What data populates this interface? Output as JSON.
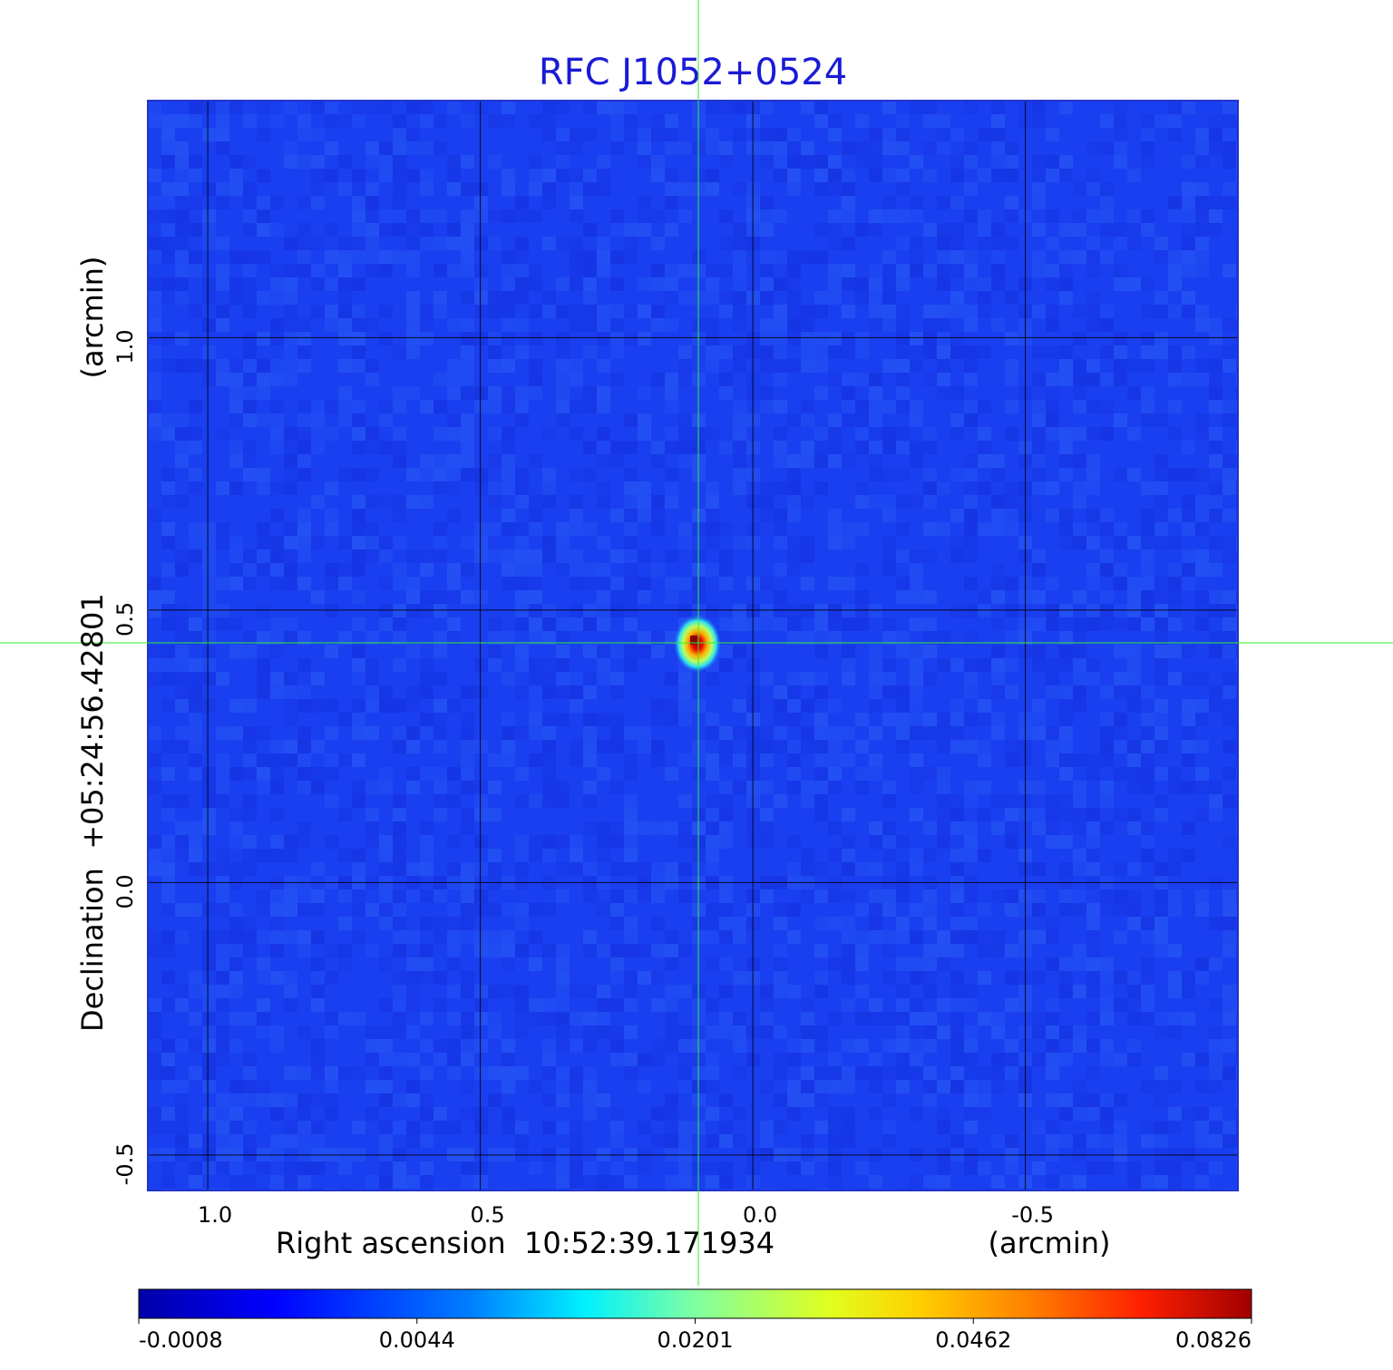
{
  "chart_data": {
    "type": "heatmap",
    "title": "RFC J1052+0524",
    "xlabel": "Right ascension  10:52:39.171934",
    "xunit": "(arcmin)",
    "ylabel": "Declination  +05:24:56.42801",
    "yunit": "(arcmin)",
    "xlim": [
      1.11,
      -0.89
    ],
    "ylim": [
      -0.565,
      1.435
    ],
    "x_ticks": [
      {
        "value": 1.0,
        "label": "1.0"
      },
      {
        "value": 0.5,
        "label": "0.5"
      },
      {
        "value": 0.0,
        "label": "0.0"
      },
      {
        "value": -0.5,
        "label": "-0.5"
      }
    ],
    "y_ticks": [
      {
        "value": 1.0,
        "label": "1.0"
      },
      {
        "value": 0.5,
        "label": "0.5"
      },
      {
        "value": 0.0,
        "label": "0.0"
      },
      {
        "value": -0.5,
        "label": "-0.5"
      }
    ],
    "grid": true,
    "source_peak": {
      "x": 0.1,
      "y": 0.44,
      "value": 0.0826
    },
    "crosshair": {
      "x": 0.1,
      "y": 0.44,
      "color": "#33ee33"
    },
    "noise_level": -0.0008,
    "colorbar": {
      "ticks": [
        "-0.0008",
        "0.0044",
        "0.0201",
        "0.0462",
        "0.0826"
      ],
      "colormap": "jet"
    },
    "colors": {
      "title": "#1a1ad6",
      "background_field": "#1a3ff0",
      "grid": "#000000"
    }
  }
}
